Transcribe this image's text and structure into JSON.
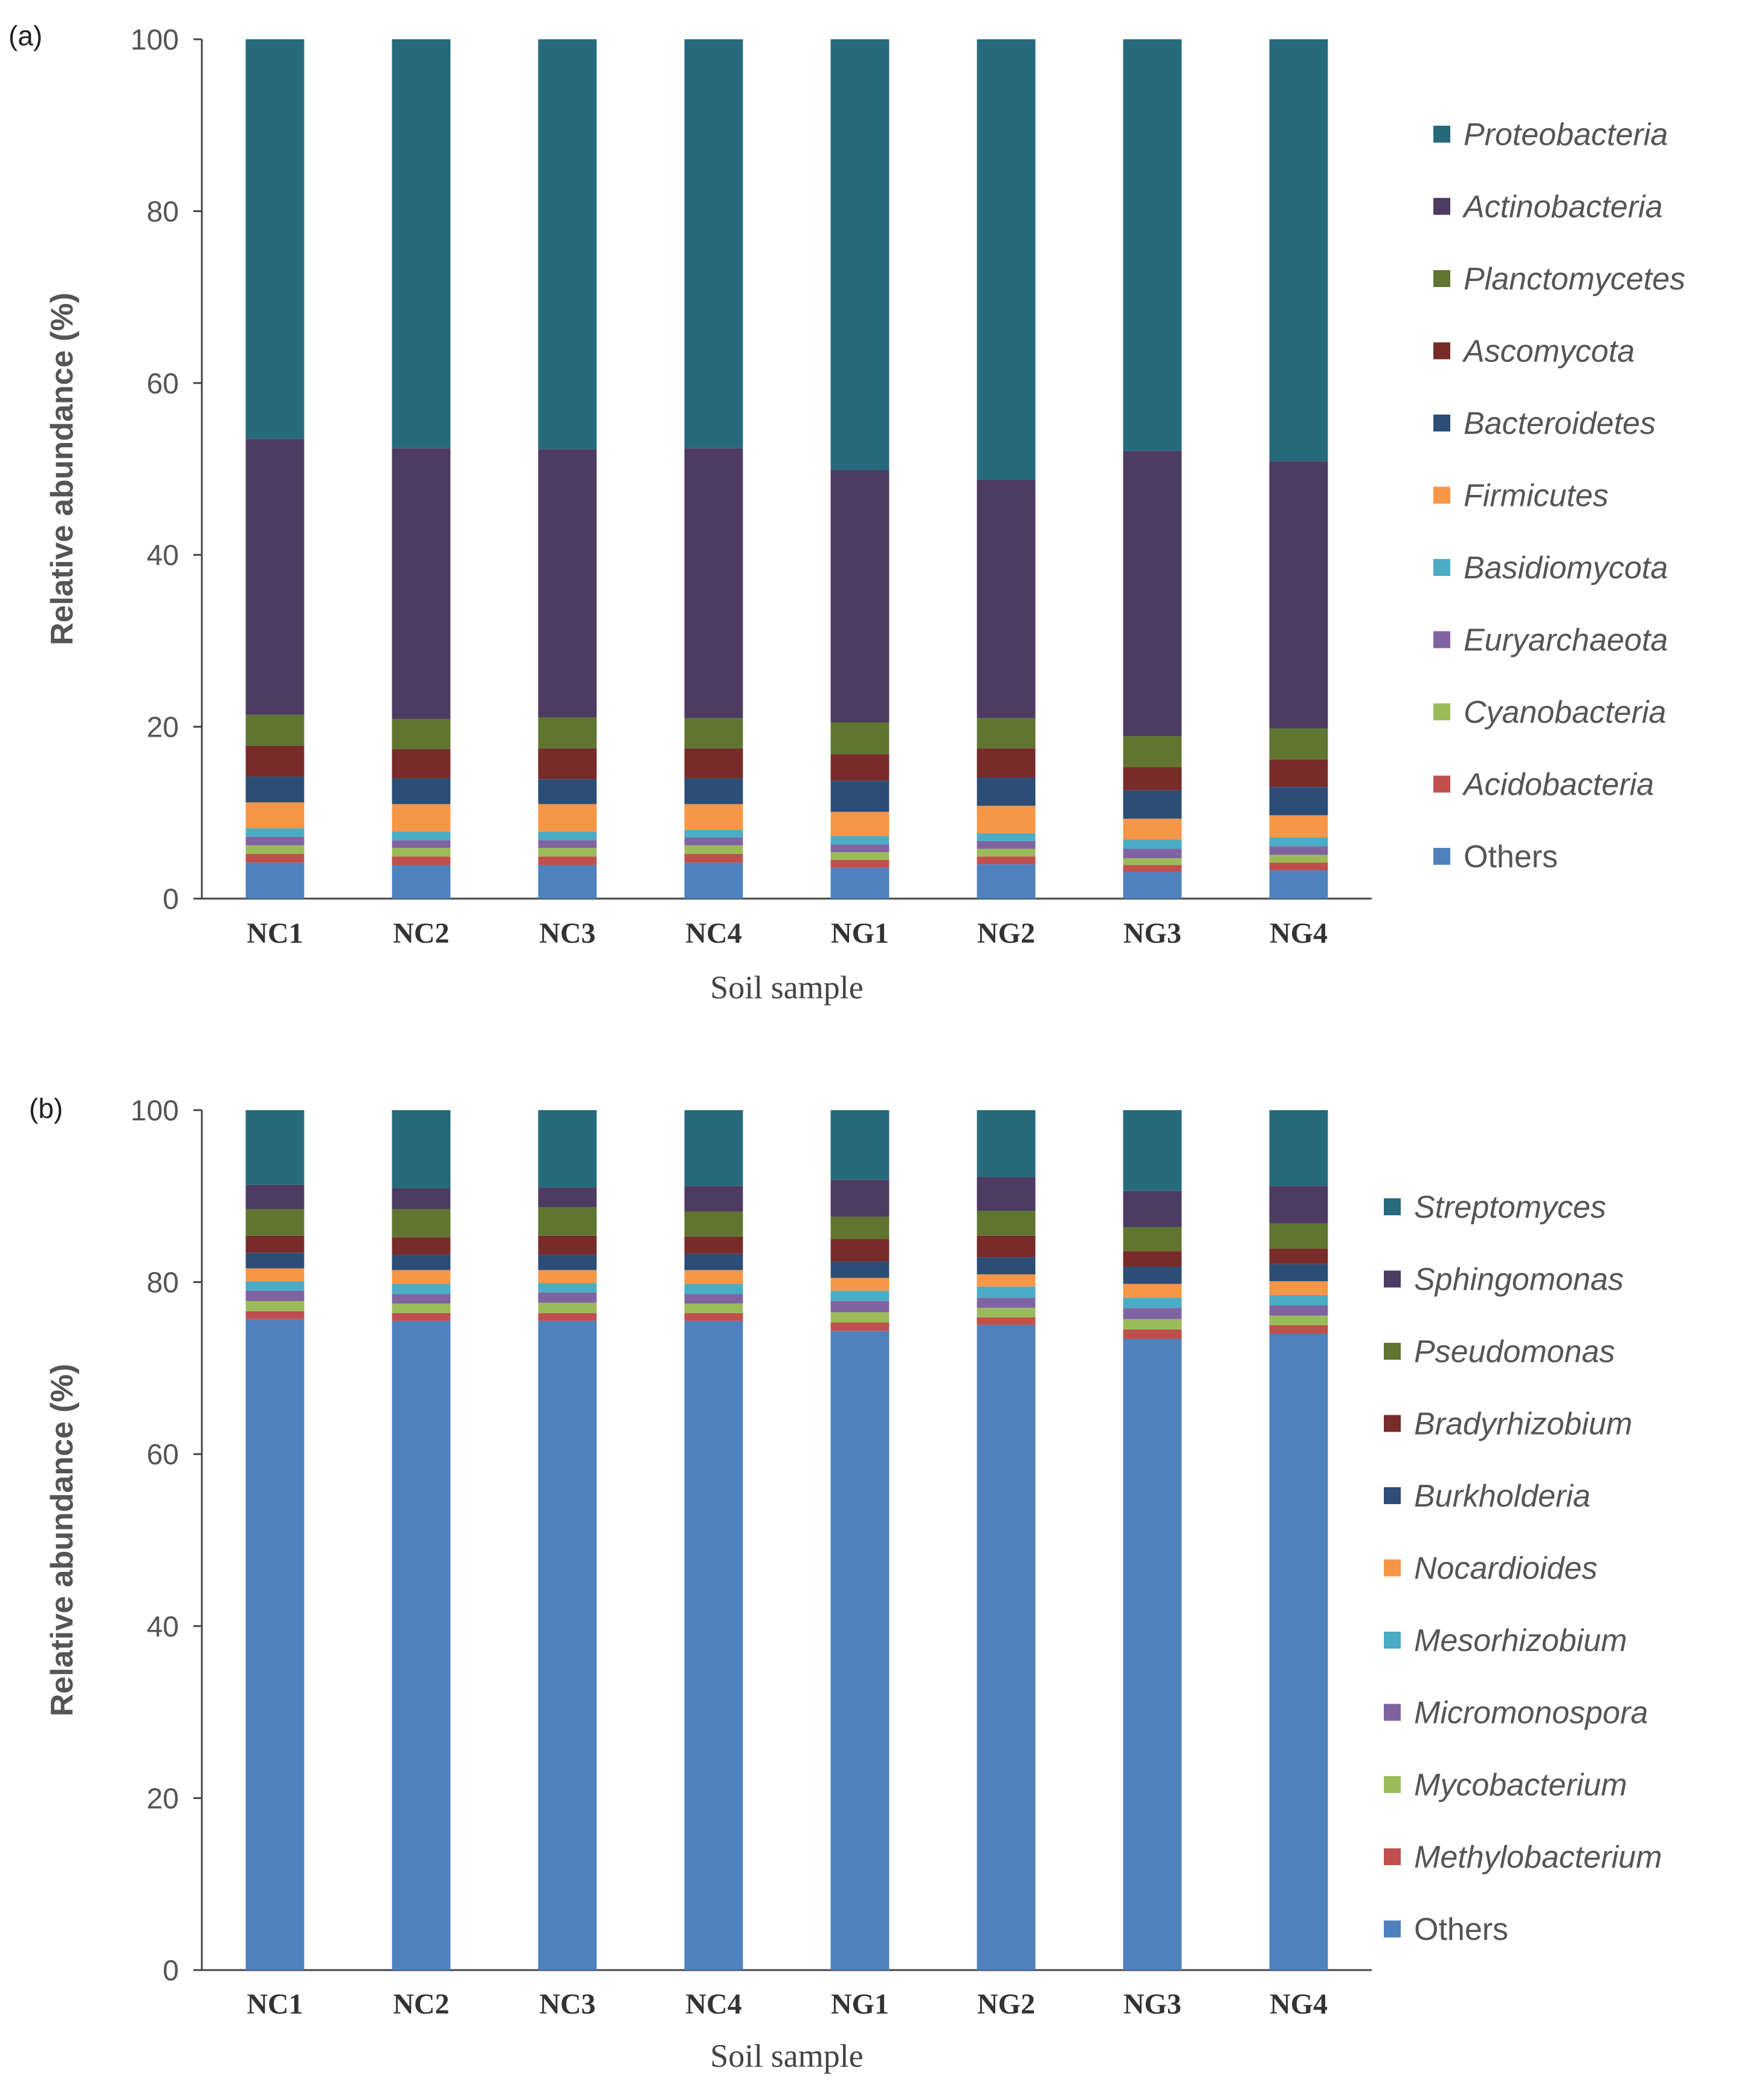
{
  "chart_data": [
    {
      "type": "bar",
      "stacked": true,
      "panel_label": "(a)",
      "ylabel": "Relative abundance (%)",
      "xlabel": "Soil sample",
      "ylim": [
        0,
        100
      ],
      "yticks": [
        "0",
        "20",
        "40",
        "60",
        "80",
        "100"
      ],
      "categories": [
        "NC1",
        "NC2",
        "NC3",
        "NC4",
        "NG1",
        "NG2",
        "NG3",
        "NG4"
      ],
      "legend_position": "right",
      "series": [
        {
          "name": "Others",
          "italic": false,
          "color": "#4F81BD",
          "values": [
            4.2,
            3.9,
            3.9,
            4.2,
            3.6,
            4.0,
            3.1,
            3.3
          ]
        },
        {
          "name": "Acidobacteria",
          "italic": true,
          "color": "#C0504D",
          "values": [
            1.0,
            1.0,
            1.0,
            1.0,
            0.9,
            0.9,
            0.8,
            0.9
          ]
        },
        {
          "name": "Cyanobacteria",
          "italic": true,
          "color": "#9BBB59",
          "values": [
            1.0,
            1.0,
            1.0,
            1.0,
            0.9,
            0.9,
            0.8,
            0.9
          ]
        },
        {
          "name": "Euryarchaeota",
          "italic": true,
          "color": "#8064A2",
          "values": [
            1.0,
            0.9,
            0.9,
            0.9,
            0.9,
            0.9,
            1.1,
            1.0
          ]
        },
        {
          "name": "Basidiomycota",
          "italic": true,
          "color": "#4BACC6",
          "values": [
            1.0,
            1.0,
            1.0,
            0.9,
            1.0,
            0.9,
            1.1,
            1.0
          ]
        },
        {
          "name": "Firmicutes",
          "italic": true,
          "color": "#F79646",
          "values": [
            3.0,
            3.2,
            3.2,
            3.0,
            2.8,
            3.2,
            2.4,
            2.6
          ]
        },
        {
          "name": "Bacteroidetes",
          "italic": true,
          "color": "#2C4D75",
          "values": [
            3.0,
            3.0,
            2.9,
            3.0,
            3.6,
            3.3,
            3.3,
            3.3
          ]
        },
        {
          "name": "Ascomycota",
          "italic": true,
          "color": "#772C2A",
          "values": [
            3.6,
            3.4,
            3.6,
            3.5,
            3.1,
            3.4,
            2.7,
            3.2
          ]
        },
        {
          "name": "Planctomycetes",
          "italic": true,
          "color": "#5F7530",
          "values": [
            3.6,
            3.5,
            3.6,
            3.5,
            3.7,
            3.5,
            3.6,
            3.6
          ]
        },
        {
          "name": "Actinobacteria",
          "italic": true,
          "color": "#4D3B62",
          "values": [
            32.1,
            31.5,
            31.2,
            31.4,
            29.4,
            27.7,
            33.2,
            31.1
          ]
        },
        {
          "name": "Proteobacteria",
          "italic": true,
          "color": "#276A7C",
          "values": [
            46.5,
            47.6,
            47.7,
            47.6,
            50.1,
            51.3,
            47.9,
            49.1
          ]
        }
      ]
    },
    {
      "type": "bar",
      "stacked": true,
      "panel_label": "(b)",
      "ylabel": "Relative abundance (%)",
      "xlabel": "Soil sample",
      "ylim": [
        0,
        100
      ],
      "yticks": [
        "0",
        "20",
        "40",
        "60",
        "80",
        "100"
      ],
      "categories": [
        "NC1",
        "NC2",
        "NC3",
        "NC4",
        "NG1",
        "NG2",
        "NG3",
        "NG4"
      ],
      "legend_position": "right",
      "series": [
        {
          "name": "Others",
          "italic": false,
          "color": "#4F81BD",
          "values": [
            75.7,
            75.5,
            75.5,
            75.5,
            74.3,
            75.0,
            73.4,
            74.0
          ]
        },
        {
          "name": "Methylobacterium",
          "italic": true,
          "color": "#C0504D",
          "values": [
            0.9,
            0.9,
            0.9,
            0.9,
            1.0,
            0.9,
            1.1,
            1.0
          ]
        },
        {
          "name": "Mycobacterium",
          "italic": true,
          "color": "#9BBB59",
          "values": [
            1.2,
            1.1,
            1.2,
            1.1,
            1.2,
            1.1,
            1.2,
            1.1
          ]
        },
        {
          "name": "Micromonospora",
          "italic": true,
          "color": "#8064A2",
          "values": [
            1.2,
            1.1,
            1.2,
            1.1,
            1.3,
            1.2,
            1.3,
            1.2
          ]
        },
        {
          "name": "Mesorhizobium",
          "italic": true,
          "color": "#4BACC6",
          "values": [
            1.1,
            1.2,
            1.1,
            1.2,
            1.2,
            1.3,
            1.2,
            1.2
          ]
        },
        {
          "name": "Nocardioides",
          "italic": true,
          "color": "#F79646",
          "values": [
            1.5,
            1.6,
            1.5,
            1.6,
            1.5,
            1.4,
            1.6,
            1.6
          ]
        },
        {
          "name": "Burkholderia",
          "italic": true,
          "color": "#2C4D75",
          "values": [
            1.8,
            1.8,
            1.8,
            1.9,
            1.9,
            2.0,
            2.0,
            2.0
          ]
        },
        {
          "name": "Bradyrhizobium",
          "italic": true,
          "color": "#772C2A",
          "values": [
            2.0,
            2.0,
            2.2,
            2.0,
            2.6,
            2.5,
            1.8,
            1.8
          ]
        },
        {
          "name": "Pseudomonas",
          "italic": true,
          "color": "#5F7530",
          "values": [
            3.1,
            3.3,
            3.3,
            2.9,
            2.6,
            2.9,
            2.8,
            2.9
          ]
        },
        {
          "name": "Sphingomonas",
          "italic": true,
          "color": "#4D3B62",
          "values": [
            2.8,
            2.4,
            2.3,
            3.0,
            4.3,
            3.9,
            4.2,
            4.4
          ]
        },
        {
          "name": "Streptomyces",
          "italic": true,
          "color": "#276A7C",
          "values": [
            8.7,
            9.1,
            9.0,
            8.8,
            8.1,
            7.8,
            9.4,
            8.8
          ]
        }
      ]
    }
  ]
}
